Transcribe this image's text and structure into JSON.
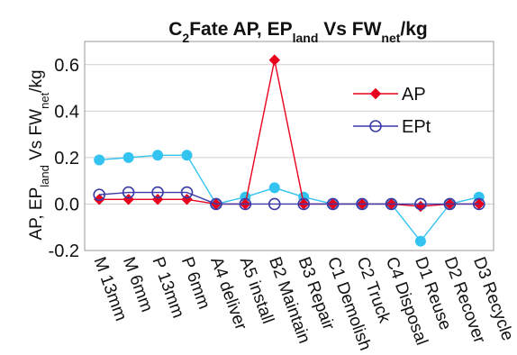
{
  "chart_data": {
    "type": "line",
    "title": {
      "parts": [
        {
          "t": "C"
        },
        {
          "t": "2",
          "sub": true
        },
        {
          "t": "Fate AP, EP"
        },
        {
          "t": "land",
          "sub": true
        },
        {
          "t": " Vs FW"
        },
        {
          "t": "net",
          "sub": true
        },
        {
          "t": "/kg"
        }
      ]
    },
    "ylabel": {
      "parts": [
        {
          "t": "AP, EP"
        },
        {
          "t": "land",
          "sub": true
        },
        {
          "t": " Vs FW"
        },
        {
          "t": "net",
          "sub": true
        },
        {
          "t": "/kg"
        }
      ]
    },
    "xlabel": "",
    "ylim": [
      -0.2,
      0.7
    ],
    "yticks": [
      -0.2,
      0.0,
      0.2,
      0.4,
      0.6
    ],
    "ytick_labels": [
      "-0.2",
      "0.0",
      "0.2",
      "0.4",
      "0.6"
    ],
    "grid": {
      "horizontal": true,
      "vertical": false
    },
    "legend_position": "right",
    "categories": [
      "M 13mm",
      "M 6mm",
      "P 13mm",
      "P 6mm",
      "A4 deliver",
      "A5 install",
      "B2 Maintain",
      "B3 Repair",
      "C1 Demolish",
      "C2 Truck",
      "C4 Disposal",
      "D1 Reuse",
      "D2 Recover",
      "D3 Recycle"
    ],
    "series": [
      {
        "name": "",
        "style": "cyan-filled",
        "color": "#33c3f0",
        "values": [
          0.19,
          0.2,
          0.21,
          0.21,
          0.0,
          0.03,
          0.07,
          0.03,
          0.0,
          0.0,
          0.0,
          -0.16,
          0.0,
          0.03
        ]
      },
      {
        "name": "AP",
        "style": "diamond",
        "color": "#e8001c",
        "values": [
          0.02,
          0.02,
          0.02,
          0.02,
          0.0,
          0.0,
          0.62,
          0.0,
          0.0,
          0.0,
          0.0,
          -0.01,
          0.0,
          0.0
        ]
      },
      {
        "name": "EPt",
        "style": "open-circle",
        "color": "#3a3aa8",
        "values": [
          0.04,
          0.05,
          0.05,
          0.05,
          0.0,
          0.0,
          0.0,
          0.0,
          0.0,
          0.0,
          0.0,
          0.0,
          0.0,
          0.0
        ]
      }
    ],
    "legend": [
      {
        "name": "AP",
        "series_index": 1
      },
      {
        "name": "EPt",
        "series_index": 2
      }
    ]
  }
}
